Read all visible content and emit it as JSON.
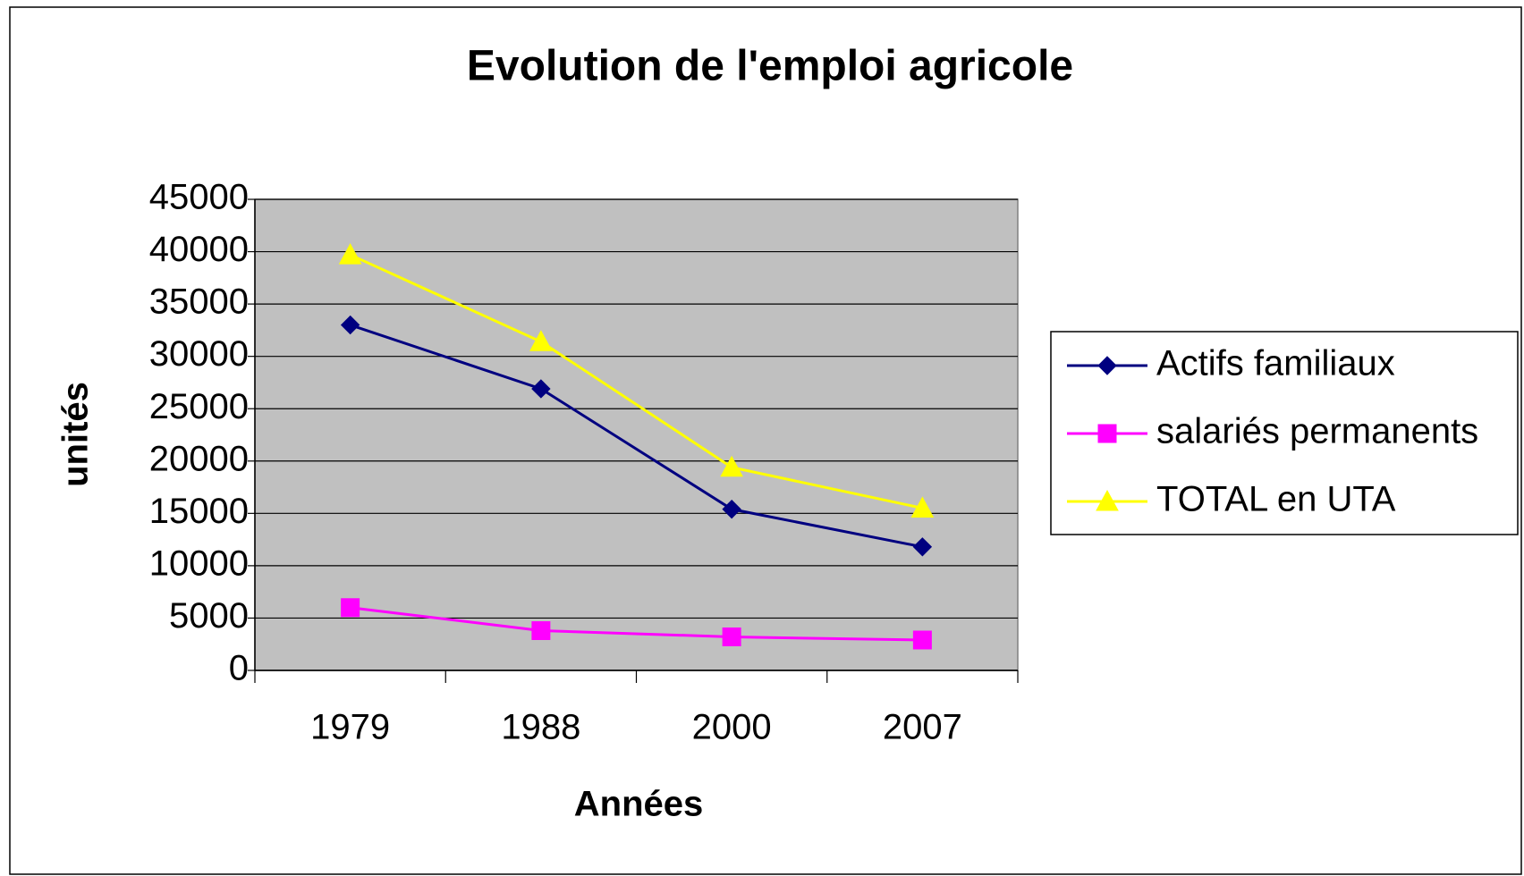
{
  "chart_data": {
    "type": "line",
    "title": "Evolution de l'emploi agricole",
    "x_label": "Années",
    "y_label": "unités",
    "categories": [
      "1979",
      "1988",
      "2000",
      "2007"
    ],
    "series": [
      {
        "name": "Actifs familiaux",
        "color": "#000080",
        "marker": "diamond",
        "values": [
          33000,
          26900,
          15400,
          11800
        ]
      },
      {
        "name": "salariés permanents",
        "color": "#ff00ff",
        "marker": "square",
        "values": [
          6000,
          3800,
          3200,
          2900
        ]
      },
      {
        "name": "TOTAL en UTA",
        "color": "#ffff00",
        "marker": "triangle",
        "values": [
          39700,
          31400,
          19400,
          15500
        ]
      }
    ],
    "ylim": [
      0,
      45000
    ],
    "yticks": [
      0,
      5000,
      10000,
      15000,
      20000,
      25000,
      30000,
      35000,
      40000,
      45000
    ],
    "grid": true,
    "legend": "right"
  }
}
